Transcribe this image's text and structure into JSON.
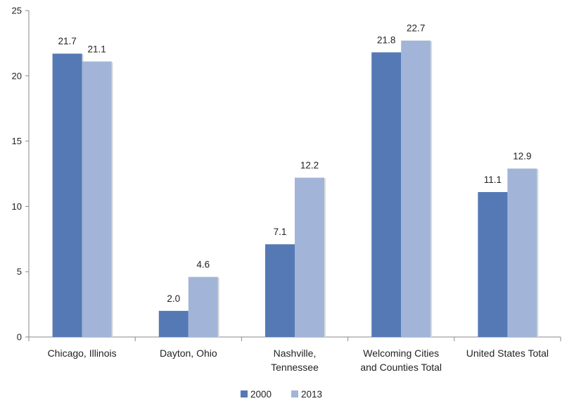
{
  "chart_data": {
    "type": "bar",
    "title": "",
    "xlabel": "",
    "ylabel": "",
    "categories": [
      [
        "Chicago, Illinois"
      ],
      [
        "Dayton, Ohio"
      ],
      [
        "Nashville,",
        "Tennessee"
      ],
      [
        "Welcoming Cities",
        "and Counties Total"
      ],
      [
        "United States Total"
      ]
    ],
    "series": [
      {
        "name": "2000",
        "color": "#5479b5",
        "values": [
          21.7,
          2.0,
          7.1,
          21.8,
          11.1
        ],
        "labels": [
          "21.7",
          "2.0",
          "7.1",
          "21.8",
          "11.1"
        ]
      },
      {
        "name": "2013",
        "color": "#a2b5d8",
        "values": [
          21.1,
          4.6,
          12.2,
          22.7,
          12.9
        ],
        "labels": [
          "21.1",
          "4.6",
          "12.2",
          "22.7",
          "12.9"
        ]
      }
    ],
    "ylim": [
      0,
      25
    ],
    "yticks": [
      "0",
      "5",
      "10",
      "15",
      "20",
      "25"
    ],
    "grid": false,
    "legend_position": "bottom-center"
  }
}
